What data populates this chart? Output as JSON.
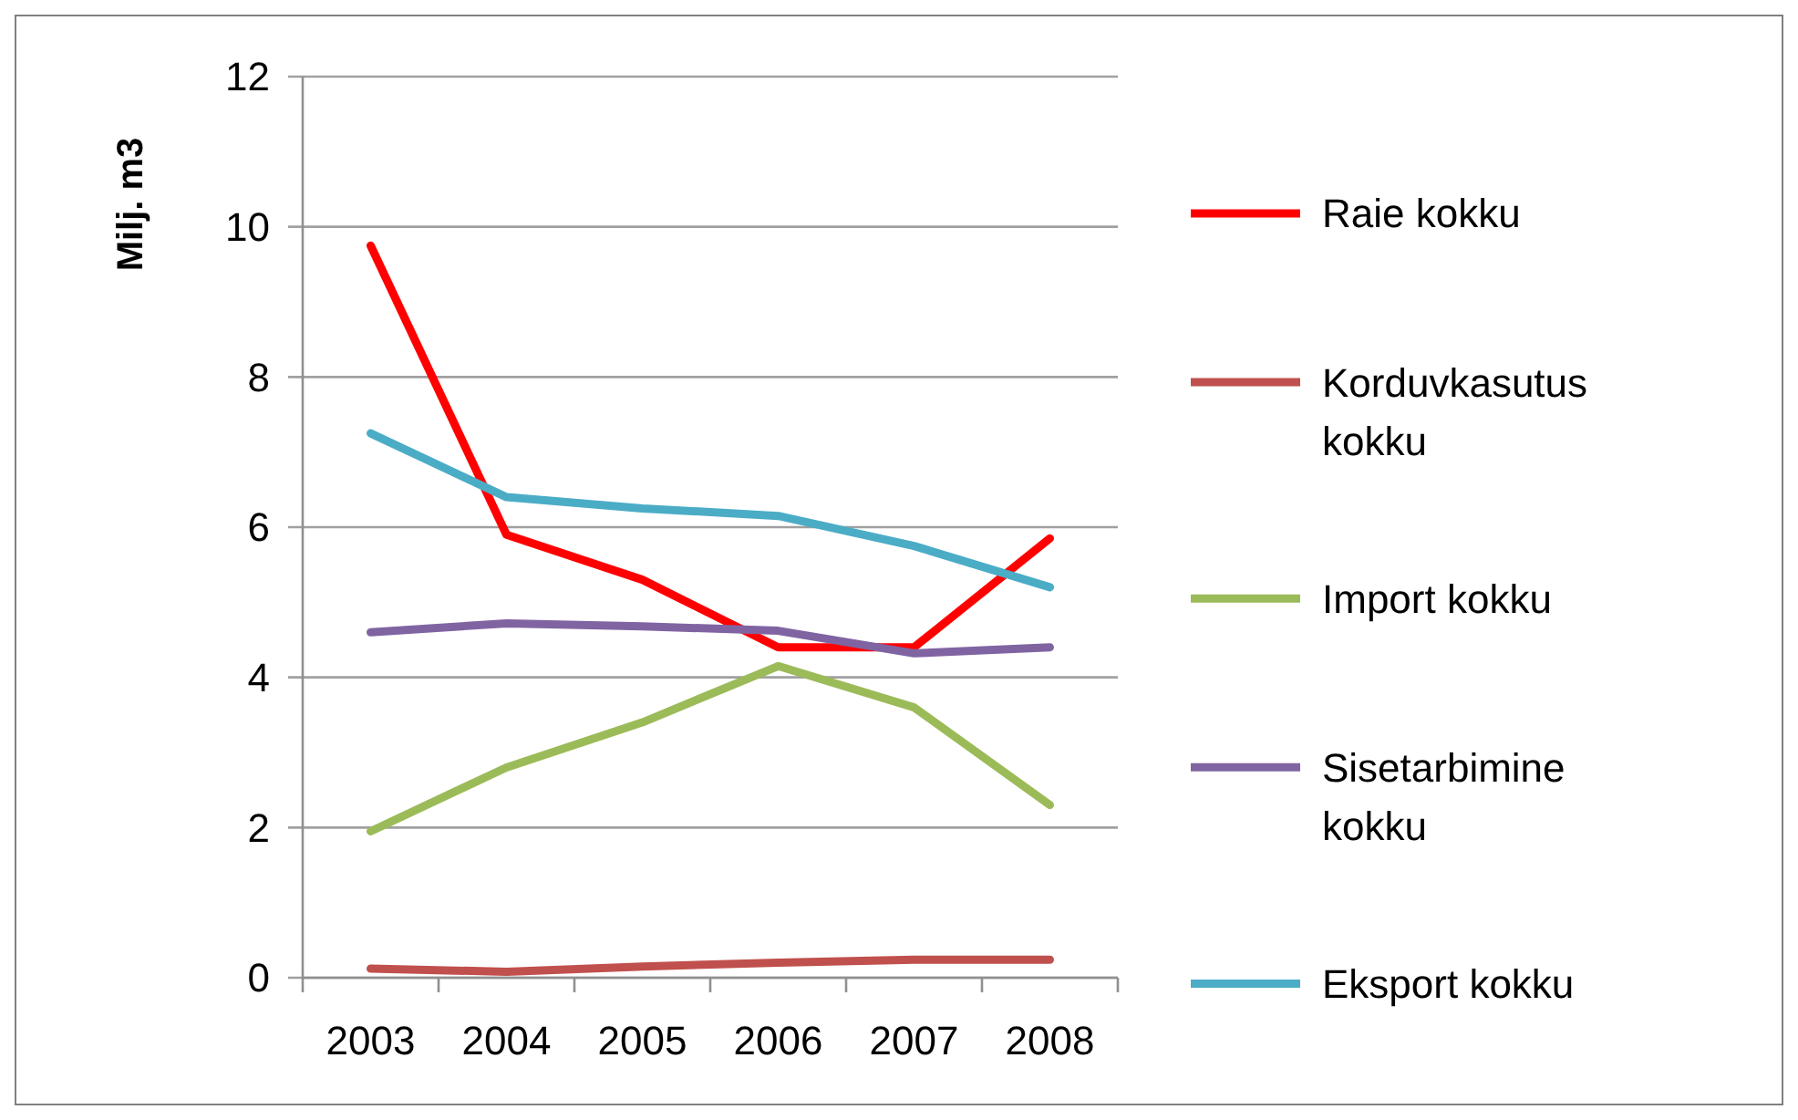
{
  "chart_data": {
    "type": "line",
    "ylabel": "Milj. m3",
    "categories": [
      "2003",
      "2004",
      "2005",
      "2006",
      "2007",
      "2008"
    ],
    "ylim": [
      0,
      12
    ],
    "yticks": [
      0,
      2,
      4,
      6,
      8,
      10,
      12
    ],
    "grid": "y",
    "legend": "right",
    "marker": "none",
    "series": [
      {
        "name": "Raie kokku",
        "color": "#ff0000",
        "values": [
          9.75,
          5.9,
          5.3,
          4.4,
          4.4,
          5.85
        ]
      },
      {
        "name": "Korduvkasutus kokku",
        "color": "#c0504d",
        "values": [
          0.12,
          0.08,
          0.15,
          0.2,
          0.24,
          0.24
        ]
      },
      {
        "name": "Import kokku",
        "color": "#9bbb59",
        "values": [
          1.95,
          2.8,
          3.4,
          4.15,
          3.6,
          2.3
        ]
      },
      {
        "name": "Sisetarbimine kokku",
        "color": "#8064a2",
        "values": [
          4.6,
          4.72,
          4.68,
          4.62,
          4.32,
          4.4
        ]
      },
      {
        "name": "Eksport kokku",
        "color": "#4bacc6",
        "values": [
          7.25,
          6.4,
          6.25,
          6.15,
          5.75,
          5.2
        ]
      }
    ]
  }
}
